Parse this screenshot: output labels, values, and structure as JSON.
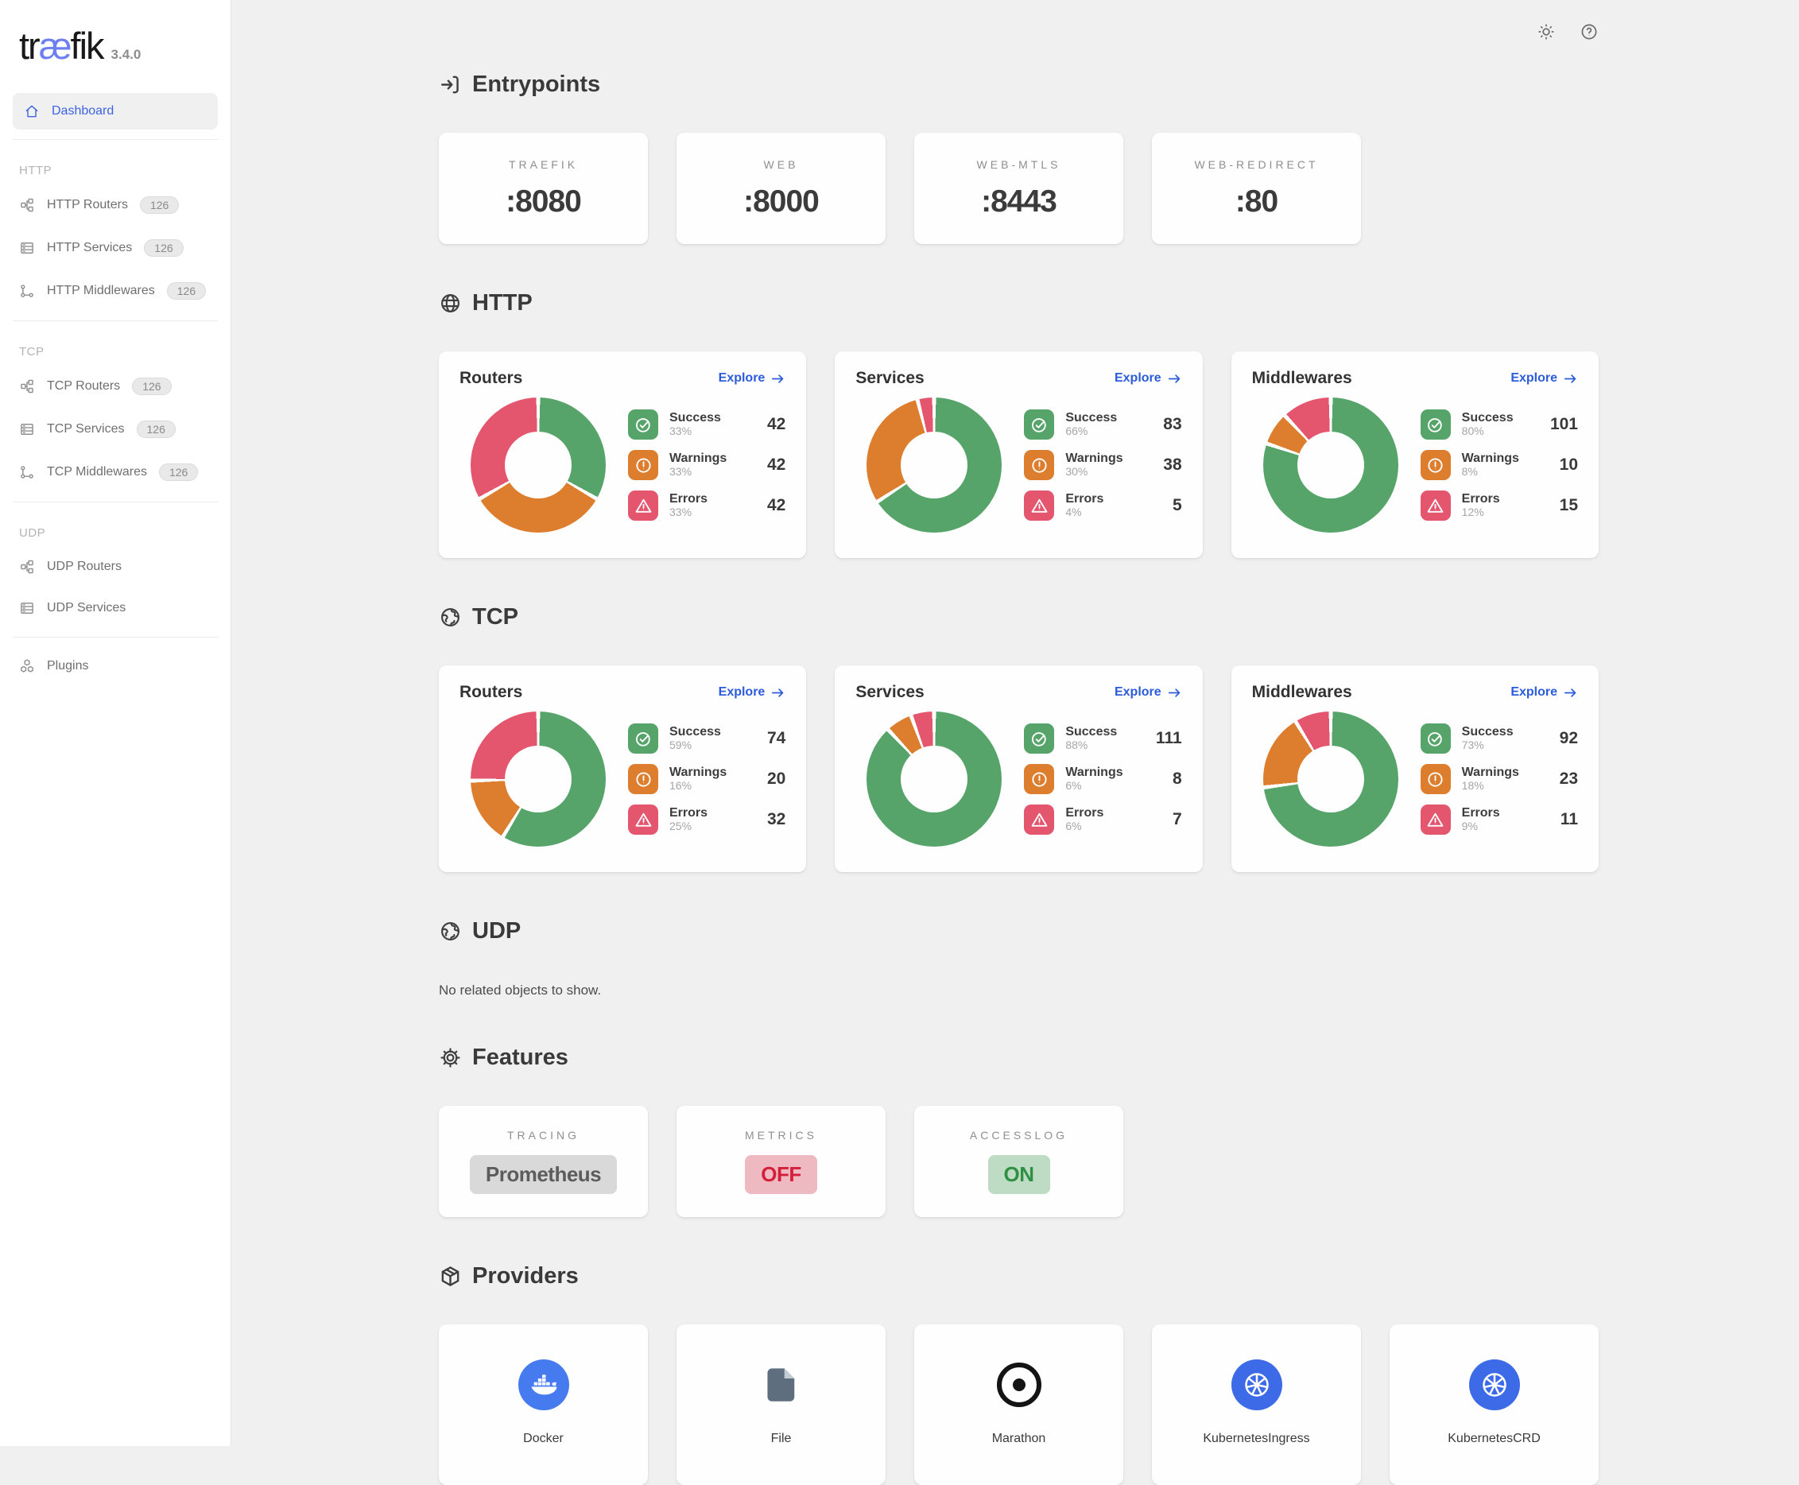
{
  "app": {
    "logo_pre": "tr",
    "logo_mid": "æ",
    "logo_post": "fik",
    "version": "3.4.0"
  },
  "topbar": {
    "icons": [
      "theme-toggle-sun-icon",
      "help-icon"
    ]
  },
  "sidebar": {
    "dashboard": {
      "label": "Dashboard",
      "icon": "home-icon"
    },
    "sections": [
      {
        "label": "HTTP",
        "items": [
          {
            "label": "HTTP Routers",
            "icon": "router-icon",
            "badge": "126"
          },
          {
            "label": "HTTP Services",
            "icon": "service-icon",
            "badge": "126"
          },
          {
            "label": "HTTP Middlewares",
            "icon": "middleware-icon",
            "badge": "126"
          }
        ]
      },
      {
        "label": "TCP",
        "items": [
          {
            "label": "TCP Routers",
            "icon": "router-icon",
            "badge": "126"
          },
          {
            "label": "TCP Services",
            "icon": "service-icon",
            "badge": "126"
          },
          {
            "label": "TCP Middlewares",
            "icon": "middleware-icon",
            "badge": "126"
          }
        ]
      },
      {
        "label": "UDP",
        "items": [
          {
            "label": "UDP Routers",
            "icon": "router-icon"
          },
          {
            "label": "UDP Services",
            "icon": "service-icon"
          }
        ]
      }
    ],
    "plugins": {
      "label": "Plugins",
      "icon": "plugins-icon"
    }
  },
  "entrypoints": {
    "title": "Entrypoints",
    "icon": "login-icon",
    "cards": [
      {
        "label": "TRAEFIK",
        "value": ":8080"
      },
      {
        "label": "WEB",
        "value": ":8000"
      },
      {
        "label": "WEB-MTLS",
        "value": ":8443"
      },
      {
        "label": "WEB-REDIRECT",
        "value": ":80"
      }
    ]
  },
  "protocol_sections": [
    {
      "title": "HTTP",
      "icon": "globe-icon",
      "cards": [
        {
          "title": "Routers",
          "explore": "Explore",
          "stats": [
            {
              "label": "Success",
              "icon": "check-circle-icon",
              "pct_label": "33%",
              "count": 42
            },
            {
              "label": "Warnings",
              "icon": "warning-circle-icon",
              "pct_label": "33%",
              "count": 42
            },
            {
              "label": "Errors",
              "icon": "error-triangle-icon",
              "pct_label": "33%",
              "count": 42
            }
          ]
        },
        {
          "title": "Services",
          "explore": "Explore",
          "stats": [
            {
              "label": "Success",
              "icon": "check-circle-icon",
              "pct_label": "66%",
              "count": 83
            },
            {
              "label": "Warnings",
              "icon": "warning-circle-icon",
              "pct_label": "30%",
              "count": 38
            },
            {
              "label": "Errors",
              "icon": "error-triangle-icon",
              "pct_label": "4%",
              "count": 5
            }
          ]
        },
        {
          "title": "Middlewares",
          "explore": "Explore",
          "stats": [
            {
              "label": "Success",
              "icon": "check-circle-icon",
              "pct_label": "80%",
              "count": 101
            },
            {
              "label": "Warnings",
              "icon": "warning-circle-icon",
              "pct_label": "8%",
              "count": 10
            },
            {
              "label": "Errors",
              "icon": "error-triangle-icon",
              "pct_label": "12%",
              "count": 15
            }
          ]
        }
      ]
    },
    {
      "title": "TCP",
      "icon": "world-icon",
      "cards": [
        {
          "title": "Routers",
          "explore": "Explore",
          "stats": [
            {
              "label": "Success",
              "icon": "check-circle-icon",
              "pct_label": "59%",
              "count": 74
            },
            {
              "label": "Warnings",
              "icon": "warning-circle-icon",
              "pct_label": "16%",
              "count": 20
            },
            {
              "label": "Errors",
              "icon": "error-triangle-icon",
              "pct_label": "25%",
              "count": 32
            }
          ]
        },
        {
          "title": "Services",
          "explore": "Explore",
          "stats": [
            {
              "label": "Success",
              "icon": "check-circle-icon",
              "pct_label": "88%",
              "count": 111
            },
            {
              "label": "Warnings",
              "icon": "warning-circle-icon",
              "pct_label": "6%",
              "count": 8
            },
            {
              "label": "Errors",
              "icon": "error-triangle-icon",
              "pct_label": "6%",
              "count": 7
            }
          ]
        },
        {
          "title": "Middlewares",
          "explore": "Explore",
          "stats": [
            {
              "label": "Success",
              "icon": "check-circle-icon",
              "pct_label": "73%",
              "count": 92
            },
            {
              "label": "Warnings",
              "icon": "warning-circle-icon",
              "pct_label": "18%",
              "count": 23
            },
            {
              "label": "Errors",
              "icon": "error-triangle-icon",
              "pct_label": "9%",
              "count": 11
            }
          ]
        }
      ]
    },
    {
      "title": "UDP",
      "icon": "world-icon",
      "empty": "No related objects to show."
    }
  ],
  "features": {
    "title": "Features",
    "icon": "gear-icon",
    "cards": [
      {
        "label": "TRACING",
        "value": "Prometheus",
        "state": "neutral"
      },
      {
        "label": "METRICS",
        "value": "OFF",
        "state": "off"
      },
      {
        "label": "ACCESSLOG",
        "value": "ON",
        "state": "on"
      }
    ]
  },
  "providers": {
    "title": "Providers",
    "icon": "package-icon",
    "items": [
      {
        "label": "Docker",
        "icon": "docker-icon",
        "accent": "#467bf0"
      },
      {
        "label": "File",
        "icon": "file-icon",
        "accent": ""
      },
      {
        "label": "Marathon",
        "icon": "marathon-icon",
        "accent": ""
      },
      {
        "label": "KubernetesIngress",
        "icon": "kubernetes-icon",
        "accent": "#3d6be8"
      },
      {
        "label": "KubernetesCRD",
        "icon": "kubernetes-icon",
        "accent": "#3d6be8"
      }
    ]
  },
  "colors": {
    "success": "#57a46b",
    "warning": "#dd7e2e",
    "error": "#e4556e",
    "link": "#2c5cdc",
    "logo_accent": "#6e7ff2",
    "dashboard_accent": "#3e63e0"
  }
}
